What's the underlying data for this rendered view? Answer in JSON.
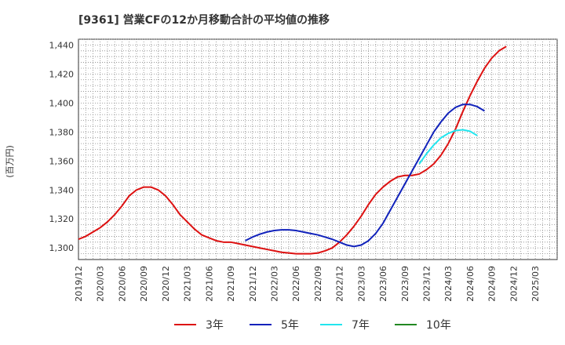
{
  "chart_data": {
    "type": "line",
    "title": "[9361]  営業CFの12か月移動合計の平均値の推移",
    "ylabel": "(百万円)",
    "xlabel": "",
    "ylim": [
      1292,
      1444
    ],
    "yticks": [
      1300,
      1320,
      1340,
      1360,
      1380,
      1400,
      1420,
      1440
    ],
    "ytick_labels": [
      "1,300",
      "1,320",
      "1,340",
      "1,360",
      "1,380",
      "1,400",
      "1,420",
      "1,440"
    ],
    "xticks": [
      "2019/12",
      "2020/03",
      "2020/06",
      "2020/09",
      "2020/12",
      "2021/03",
      "2021/06",
      "2021/09",
      "2021/12",
      "2022/03",
      "2022/06",
      "2022/09",
      "2022/12",
      "2023/03",
      "2023/06",
      "2023/09",
      "2023/12",
      "2024/03",
      "2024/06",
      "2024/09",
      "2024/12",
      "2025/03"
    ],
    "grid": true,
    "legend_position": "bottom",
    "series": [
      {
        "name": "3年",
        "color": "#dd1111",
        "start": "2019/12",
        "values": [
          1306,
          1308,
          1311,
          1314,
          1318,
          1323,
          1329,
          1336,
          1340,
          1342,
          1342,
          1340,
          1336,
          1330,
          1323,
          1318,
          1313,
          1309,
          1307,
          1305,
          1304,
          1304,
          1303,
          1302,
          1301,
          1300,
          1299,
          1298,
          1297,
          1296.5,
          1296,
          1296,
          1296,
          1296.5,
          1298,
          1300,
          1304,
          1309,
          1315,
          1322,
          1330,
          1337,
          1342,
          1346,
          1349,
          1350,
          1350,
          1351,
          1354,
          1358,
          1364,
          1372,
          1382,
          1394,
          1405,
          1415,
          1424,
          1431,
          1436,
          1439
        ]
      },
      {
        "name": "5年",
        "color": "#1122bb",
        "start": "2021/11",
        "values": [
          1305,
          1307.5,
          1309.5,
          1311,
          1312,
          1312.5,
          1312.5,
          1312,
          1311,
          1310,
          1309,
          1307.5,
          1306,
          1304,
          1302,
          1301,
          1302,
          1305,
          1310,
          1317,
          1326,
          1335,
          1344,
          1353,
          1362,
          1371,
          1380,
          1387,
          1393,
          1397,
          1399,
          1399,
          1397.5,
          1394.5
        ]
      },
      {
        "name": "7年",
        "color": "#22e5ee",
        "start": "2023/11",
        "values": [
          1358,
          1365,
          1371,
          1376,
          1379,
          1381,
          1381.5,
          1380.5,
          1377.5
        ]
      },
      {
        "name": "10年",
        "color": "#228822",
        "start": "",
        "values": []
      }
    ]
  }
}
